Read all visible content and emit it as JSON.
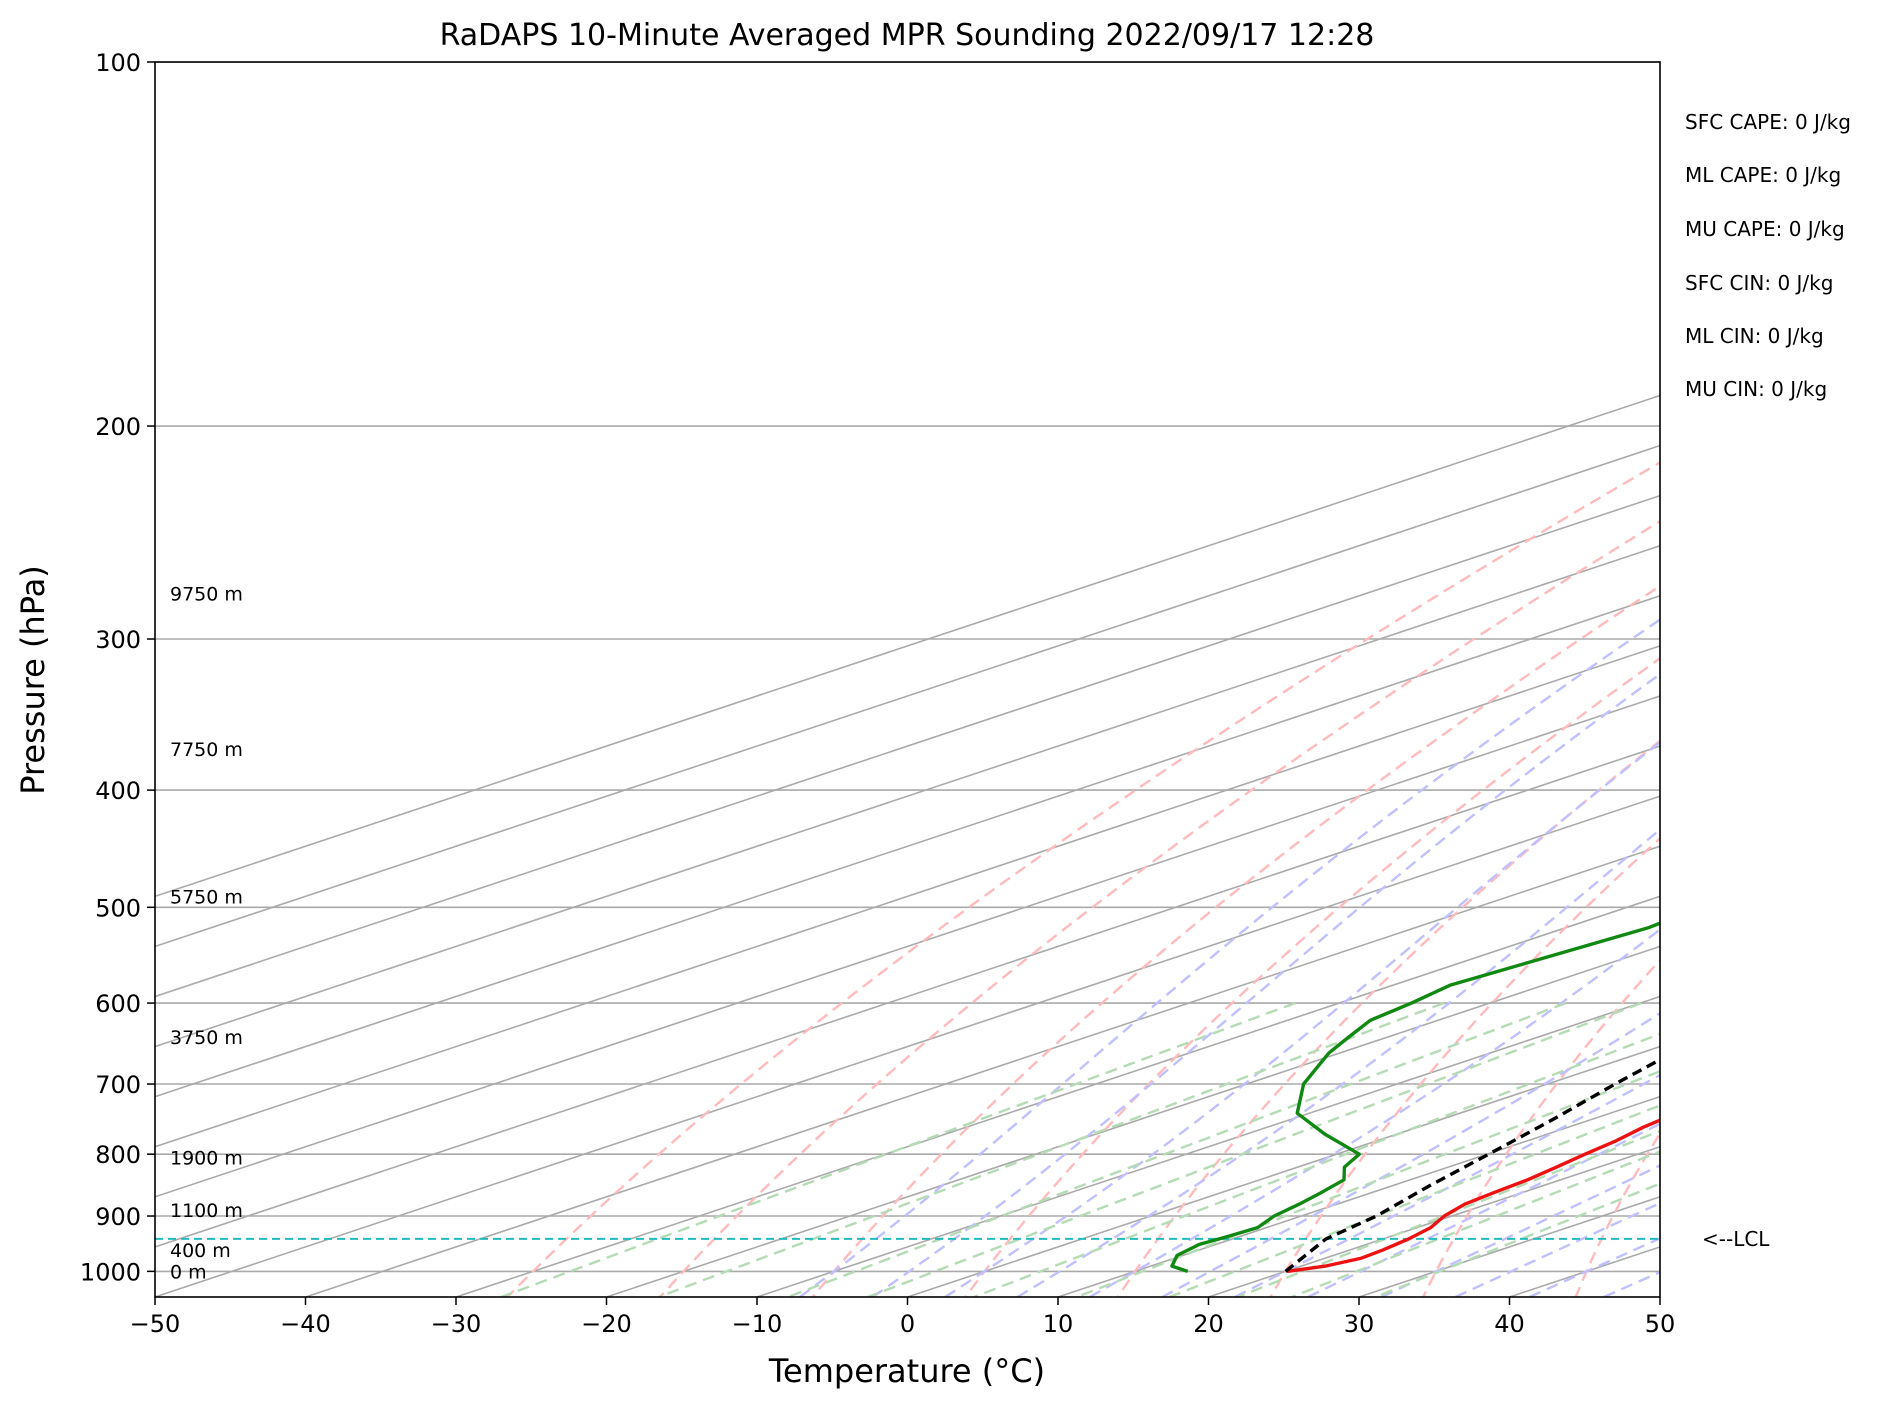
{
  "chart_data": {
    "type": "skew-t",
    "title": "RaDAPS 10-Minute Averaged MPR Sounding 2022/09/17 12:28",
    "xlabel": "Temperature (°C)",
    "ylabel": "Pressure (hPa)",
    "xlim": [
      -50,
      50
    ],
    "ylim": [
      1050,
      100
    ],
    "y_scale": "log",
    "x_ticks": [
      -50,
      -40,
      -30,
      -20,
      -10,
      0,
      10,
      20,
      30,
      40,
      50
    ],
    "x_tick_labels": [
      "−50",
      "−40",
      "−30",
      "−20",
      "−10",
      "0",
      "10",
      "20",
      "30",
      "40",
      "50"
    ],
    "y_ticks": [
      100,
      200,
      300,
      400,
      500,
      600,
      700,
      800,
      900,
      1000
    ],
    "y_tick_labels": [
      "100",
      "200",
      "300",
      "400",
      "500",
      "600",
      "700",
      "800",
      "900",
      "1000"
    ],
    "grid": true,
    "isotherms_c": [
      -130,
      -120,
      -110,
      -100,
      -90,
      -80,
      -70,
      -60,
      -50,
      -40,
      -30,
      -20,
      -10,
      0,
      10,
      20,
      30,
      40,
      50
    ],
    "dry_adiabats_c": [
      -30,
      -20,
      -10,
      0,
      10,
      20,
      30,
      40,
      50,
      60,
      70,
      80,
      90,
      100,
      110,
      120,
      130,
      140,
      150,
      160
    ],
    "moist_adiabats_c": [
      -10,
      -5,
      0,
      5,
      10,
      15,
      20,
      25,
      30,
      35,
      40,
      45
    ],
    "mixing_ratios_gkg": [
      0.4,
      1,
      2,
      3,
      5,
      8,
      12,
      16,
      20,
      28
    ],
    "colors": {
      "temperature": "#ee1111",
      "dewpoint": "#118811",
      "parcel": "#000000",
      "lcl": "#22bbbb",
      "isotherm": "#aaaaaa",
      "dry_adiabat": "#ffbbbb",
      "moist_adiabat": "#c0c0ff",
      "mixing_ratio": "#b4dcb4"
    },
    "series": [
      {
        "name": "Temperature",
        "points": [
          [
            1000,
            20.1
          ],
          [
            990,
            21.6
          ],
          [
            975,
            22.4
          ],
          [
            960,
            22.2
          ],
          [
            940,
            21.7
          ],
          [
            920,
            20.9
          ],
          [
            900,
            19.5
          ],
          [
            880,
            18.5
          ],
          [
            860,
            18.1
          ],
          [
            840,
            17.8
          ],
          [
            820,
            17.2
          ],
          [
            800,
            16.5
          ],
          [
            780,
            15.9
          ],
          [
            760,
            15.0
          ],
          [
            740,
            14.4
          ],
          [
            720,
            13.6
          ],
          [
            700,
            12.9
          ],
          [
            650,
            10.1
          ],
          [
            620,
            8.7
          ],
          [
            600,
            7.7
          ],
          [
            570,
            6.3
          ],
          [
            540,
            4.4
          ],
          [
            500,
            1.9
          ],
          [
            480,
            0.7
          ],
          [
            465,
            -0.4
          ],
          [
            440,
            -1.9
          ],
          [
            420,
            -3.5
          ],
          [
            400,
            -5.0
          ],
          [
            370,
            -7.7
          ],
          [
            350,
            -9.6
          ],
          [
            330,
            -11.6
          ],
          [
            310,
            -13.3
          ],
          [
            295,
            -14.7
          ],
          [
            285,
            -16.1
          ],
          [
            275,
            -17.5
          ]
        ]
      },
      {
        "name": "Dewpoint",
        "points": [
          [
            1000,
            13.5
          ],
          [
            990,
            11.4
          ],
          [
            970,
            9.6
          ],
          [
            950,
            8.9
          ],
          [
            935,
            9.2
          ],
          [
            920,
            9.4
          ],
          [
            900,
            8.2
          ],
          [
            880,
            7.5
          ],
          [
            860,
            6.6
          ],
          [
            840,
            5.6
          ],
          [
            820,
            3.1
          ],
          [
            800,
            1.5
          ],
          [
            770,
            -4.8
          ],
          [
            740,
            -10.8
          ],
          [
            700,
            -16.2
          ],
          [
            660,
            -20.7
          ],
          [
            640,
            -22.6
          ],
          [
            620,
            -24.5
          ],
          [
            600,
            -25.2
          ],
          [
            580,
            -26.2
          ],
          [
            540,
            -25.1
          ],
          [
            520,
            -24.5
          ],
          [
            505,
            -24.9
          ],
          [
            490,
            -23.7
          ],
          [
            465,
            -22.7
          ],
          [
            440,
            -22.3
          ],
          [
            425,
            -23.8
          ],
          [
            410,
            -23.1
          ],
          [
            395,
            -23.1
          ],
          [
            380,
            -23.6
          ],
          [
            365,
            -22.7
          ],
          [
            350,
            -22.8
          ],
          [
            335,
            -22.5
          ],
          [
            325,
            -22.3
          ],
          [
            315,
            -23.4
          ],
          [
            305,
            -32.4
          ],
          [
            295,
            -54.0
          ]
        ]
      },
      {
        "name": "Parcel",
        "points": [
          [
            1000,
            20.0
          ],
          [
            940,
            16.2
          ],
          [
            900,
            15.0
          ],
          [
            850,
            12.5
          ],
          [
            800,
            10.1
          ],
          [
            750,
            7.5
          ],
          [
            700,
            4.5
          ],
          [
            650,
            1.5
          ],
          [
            600,
            -2.0
          ],
          [
            550,
            -5.8
          ],
          [
            500,
            -10.2
          ],
          [
            450,
            -15.3
          ],
          [
            400,
            -21.0
          ],
          [
            350,
            -27.7
          ],
          [
            300,
            -35.8
          ],
          [
            275,
            -40.6
          ]
        ]
      }
    ],
    "lcl_pressure_hpa": 940,
    "lcl_label": "<--LCL",
    "height_labels": [
      {
        "p": 1000,
        "text": "0 m"
      },
      {
        "p": 960,
        "text": "400 m"
      },
      {
        "p": 890,
        "text": "1100 m"
      },
      {
        "p": 805,
        "text": "1900 m"
      },
      {
        "p": 640,
        "text": "3750 m"
      },
      {
        "p": 490,
        "text": "5750 m"
      },
      {
        "p": 370,
        "text": "7750 m"
      },
      {
        "p": 275,
        "text": "9750 m"
      }
    ],
    "indices": [
      "SFC CAPE: 0 J/kg",
      "ML CAPE: 0 J/kg",
      "MU CAPE: 0 J/kg",
      "SFC CIN: 0 J/kg",
      "ML CIN: 0 J/kg",
      "MU CIN: 0 J/kg"
    ]
  }
}
